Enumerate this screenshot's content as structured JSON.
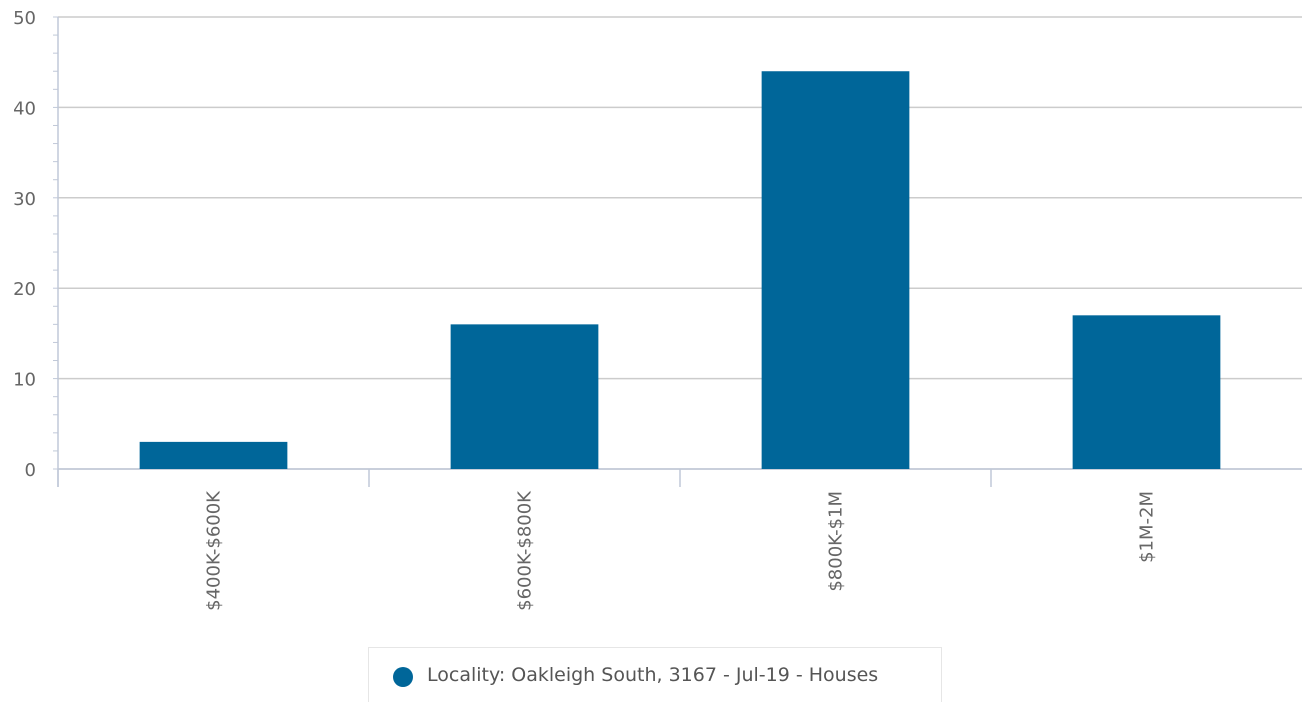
{
  "chart_data": {
    "type": "bar",
    "categories": [
      "$400K-$600K",
      "$600K-$800K",
      "$800K-$1M",
      "$1M-2M"
    ],
    "series": [
      {
        "name": "Locality: Oakleigh South, 3167 - Jul-19 - Houses",
        "values": [
          3,
          16,
          44,
          17
        ]
      }
    ],
    "ylim": [
      0,
      50
    ],
    "yticks": [
      0,
      10,
      20,
      30,
      40,
      50
    ],
    "grid": true,
    "legend_position": "bottom-center",
    "colors": {
      "bar": "#006699",
      "grid": "#cccccc",
      "axis": "#c0c8d8",
      "text": "#666666"
    }
  }
}
